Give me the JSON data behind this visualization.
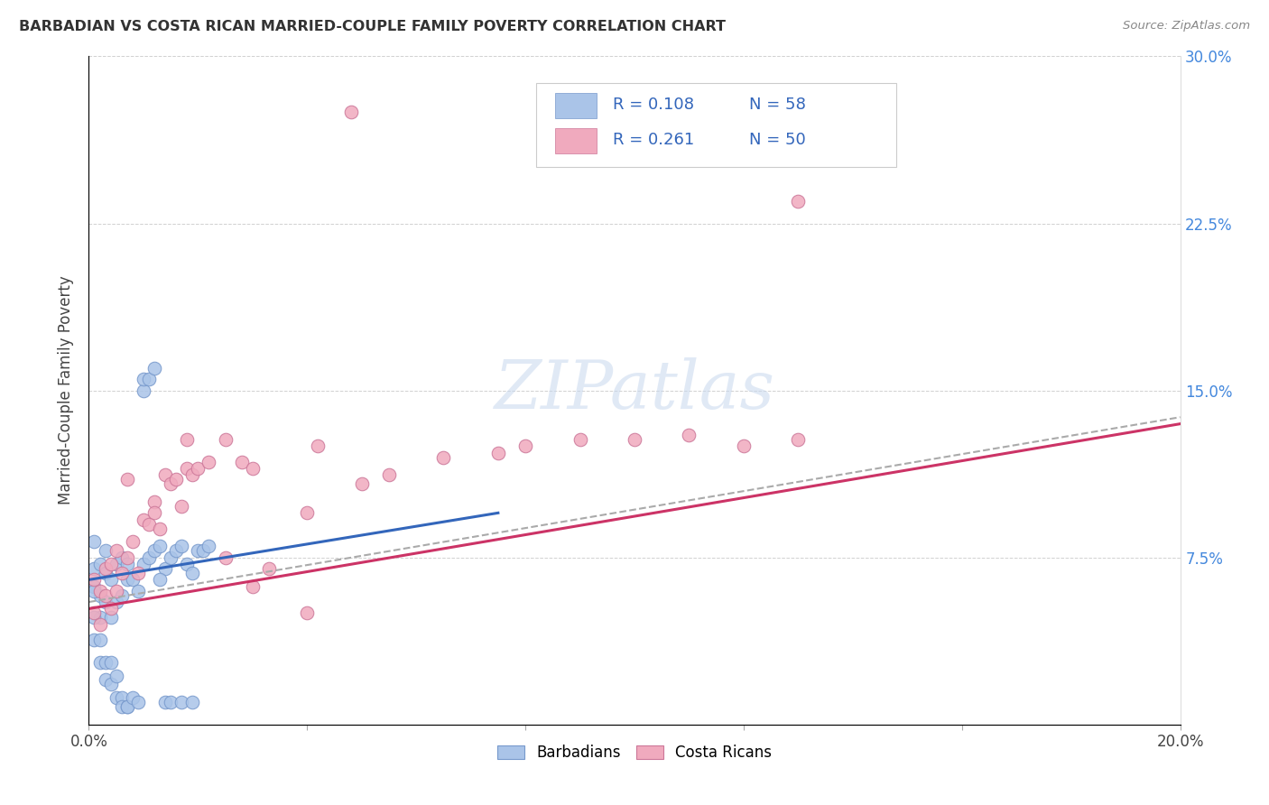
{
  "title": "BARBADIAN VS COSTA RICAN MARRIED-COUPLE FAMILY POVERTY CORRELATION CHART",
  "source": "Source: ZipAtlas.com",
  "ylabel": "Married-Couple Family Poverty",
  "xlim": [
    0.0,
    0.2
  ],
  "ylim": [
    0.0,
    0.3
  ],
  "xticks": [
    0.0,
    0.04,
    0.08,
    0.12,
    0.16,
    0.2
  ],
  "yticks": [
    0.0,
    0.075,
    0.15,
    0.225,
    0.3
  ],
  "xtick_labels": [
    "0.0%",
    "",
    "",
    "",
    "",
    "20.0%"
  ],
  "ytick_labels": [
    "",
    "7.5%",
    "15.0%",
    "22.5%",
    "30.0%"
  ],
  "barbadian_color": "#aac4e8",
  "costarican_color": "#f0aabe",
  "barbadian_edge": "#7799cc",
  "costarican_edge": "#cc7799",
  "trend_barbadian_color": "#3366bb",
  "trend_costarican_color": "#cc3366",
  "trend_dashed_color": "#aaaaaa",
  "R_barbadian": 0.108,
  "N_barbadian": 58,
  "R_costarican": 0.261,
  "N_costarican": 50,
  "legend_label_barbadian": "Barbadians",
  "legend_label_costarican": "Costa Ricans",
  "blue_line_x0": 0.0,
  "blue_line_y0": 0.065,
  "blue_line_x1": 0.075,
  "blue_line_y1": 0.095,
  "pink_line_x0": 0.0,
  "pink_line_y0": 0.052,
  "pink_line_x1": 0.2,
  "pink_line_y1": 0.135,
  "dash_line_x0": 0.0,
  "dash_line_y0": 0.055,
  "dash_line_x1": 0.2,
  "dash_line_y1": 0.138
}
